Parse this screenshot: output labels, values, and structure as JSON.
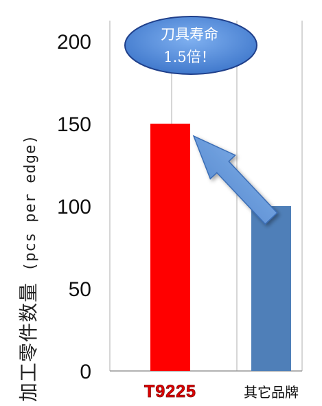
{
  "chart_data": {
    "type": "bar",
    "title": "",
    "xlabel": "",
    "ylabel": "加工零件数量",
    "ylabel_unit": "(pcs per edge)",
    "categories": [
      "T9225",
      "其它品牌"
    ],
    "values": [
      150,
      100
    ],
    "bar_colors": [
      "#ff0000",
      "#4f7fb8"
    ],
    "ylim": [
      0,
      200
    ],
    "yticks": [
      "0",
      "50",
      "100",
      "150",
      "200"
    ],
    "grid": "vertical lines",
    "annotation": {
      "line1": "刀具寿命",
      "line2": "1.5倍！",
      "fill": "#4a86d9"
    },
    "arrow_color": "#5b8fd6"
  }
}
